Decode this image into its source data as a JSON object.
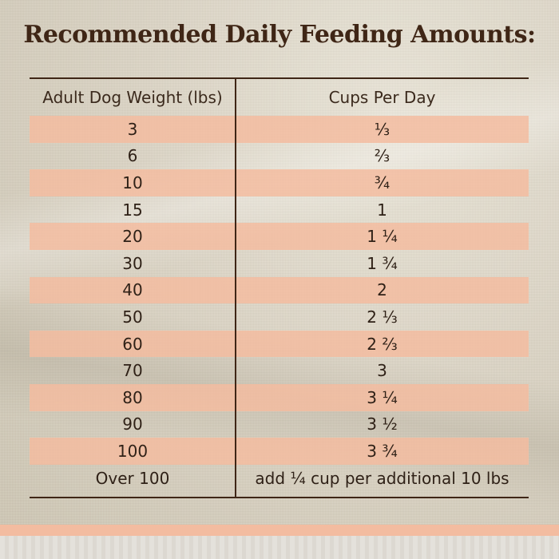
{
  "title": "Recommended Daily Feeding Amounts:",
  "table": {
    "headers": {
      "weight": "Adult Dog Weight (lbs)",
      "cups": "Cups Per Day"
    },
    "rows": [
      {
        "weight": "3",
        "cups": "⅓"
      },
      {
        "weight": "6",
        "cups": "⅔"
      },
      {
        "weight": "10",
        "cups": "¾"
      },
      {
        "weight": "15",
        "cups": "1"
      },
      {
        "weight": "20",
        "cups": "1 ¼"
      },
      {
        "weight": "30",
        "cups": "1 ¾"
      },
      {
        "weight": "40",
        "cups": "2"
      },
      {
        "weight": "50",
        "cups": "2 ⅓"
      },
      {
        "weight": "60",
        "cups": "2 ⅔"
      },
      {
        "weight": "70",
        "cups": "3"
      },
      {
        "weight": "80",
        "cups": "3 ¼"
      },
      {
        "weight": "90",
        "cups": "3 ½"
      },
      {
        "weight": "100",
        "cups": "3 ¾"
      },
      {
        "weight": "Over 100",
        "cups": "add ¼ cup per additional 10 lbs"
      }
    ]
  },
  "colors": {
    "title": "#3f2616",
    "stripe": "#f3bca0",
    "rule": "#3f2616"
  }
}
